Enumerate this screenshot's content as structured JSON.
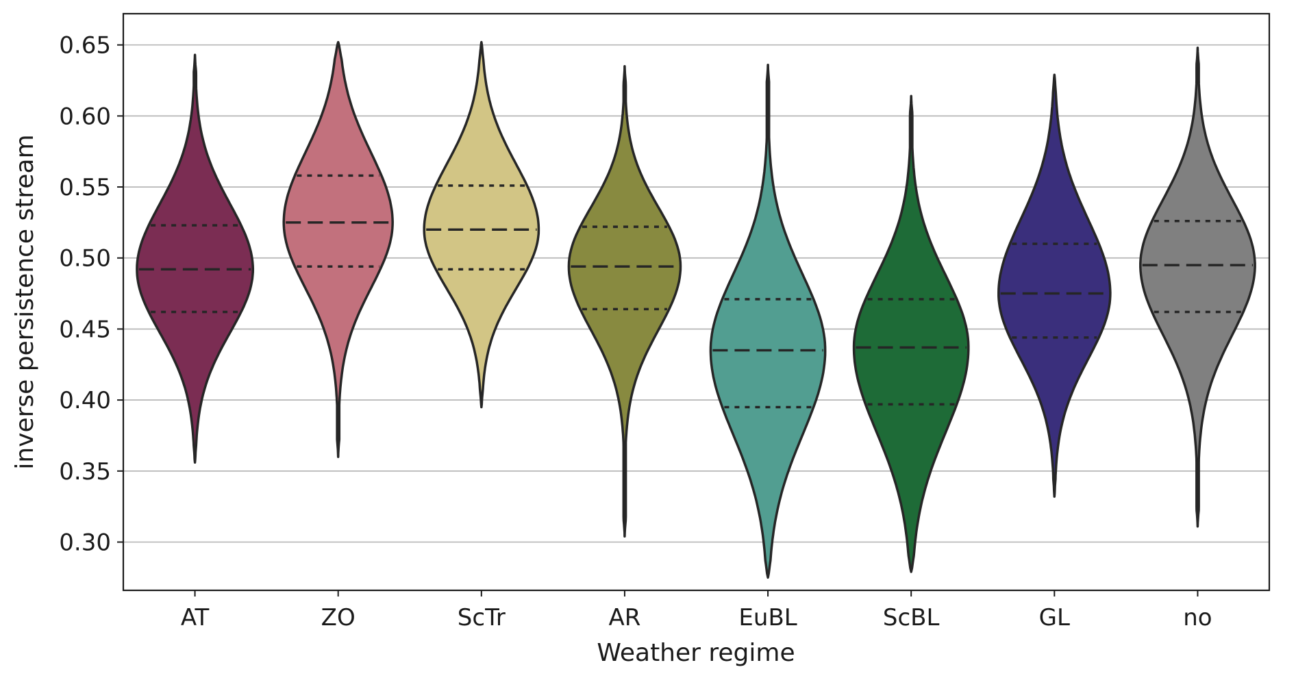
{
  "chart_data": {
    "type": "violin",
    "xlabel": "Weather regime",
    "ylabel": "inverse persistence stream",
    "ylim": [
      0.266,
      0.672
    ],
    "yticks": [
      0.3,
      0.35,
      0.4,
      0.45,
      0.5,
      0.55,
      0.6,
      0.65
    ],
    "ytick_labels": [
      "0.30",
      "0.35",
      "0.40",
      "0.45",
      "0.50",
      "0.55",
      "0.60",
      "0.65"
    ],
    "grid": "horizontal",
    "categories": [
      "AT",
      "ZO",
      "ScTr",
      "AR",
      "EuBL",
      "ScBL",
      "GL",
      "no"
    ],
    "series": [
      {
        "category": "AT",
        "color": "#7b2d53",
        "min": 0.356,
        "q1": 0.462,
        "median": 0.492,
        "q3": 0.523,
        "max": 0.643,
        "max_width": 0.81
      },
      {
        "category": "ZO",
        "color": "#c2717d",
        "min": 0.36,
        "q1": 0.494,
        "median": 0.525,
        "q3": 0.558,
        "max": 0.652,
        "max_width": 0.76
      },
      {
        "category": "ScTr",
        "color": "#d2c585",
        "min": 0.395,
        "q1": 0.492,
        "median": 0.52,
        "q3": 0.551,
        "max": 0.652,
        "max_width": 0.8
      },
      {
        "category": "AR",
        "color": "#888a40",
        "min": 0.304,
        "q1": 0.464,
        "median": 0.494,
        "q3": 0.522,
        "max": 0.635,
        "max_width": 0.78
      },
      {
        "category": "EuBL",
        "color": "#529e91",
        "min": 0.275,
        "q1": 0.395,
        "median": 0.435,
        "q3": 0.471,
        "max": 0.636,
        "max_width": 0.8
      },
      {
        "category": "ScBL",
        "color": "#1e6b37",
        "min": 0.279,
        "q1": 0.397,
        "median": 0.437,
        "q3": 0.471,
        "max": 0.614,
        "max_width": 0.8
      },
      {
        "category": "GL",
        "color": "#3a2f7c",
        "min": 0.332,
        "q1": 0.444,
        "median": 0.475,
        "q3": 0.51,
        "max": 0.629,
        "max_width": 0.78
      },
      {
        "category": "no",
        "color": "#808080",
        "min": 0.311,
        "q1": 0.462,
        "median": 0.495,
        "q3": 0.526,
        "max": 0.648,
        "max_width": 0.8
      }
    ]
  }
}
